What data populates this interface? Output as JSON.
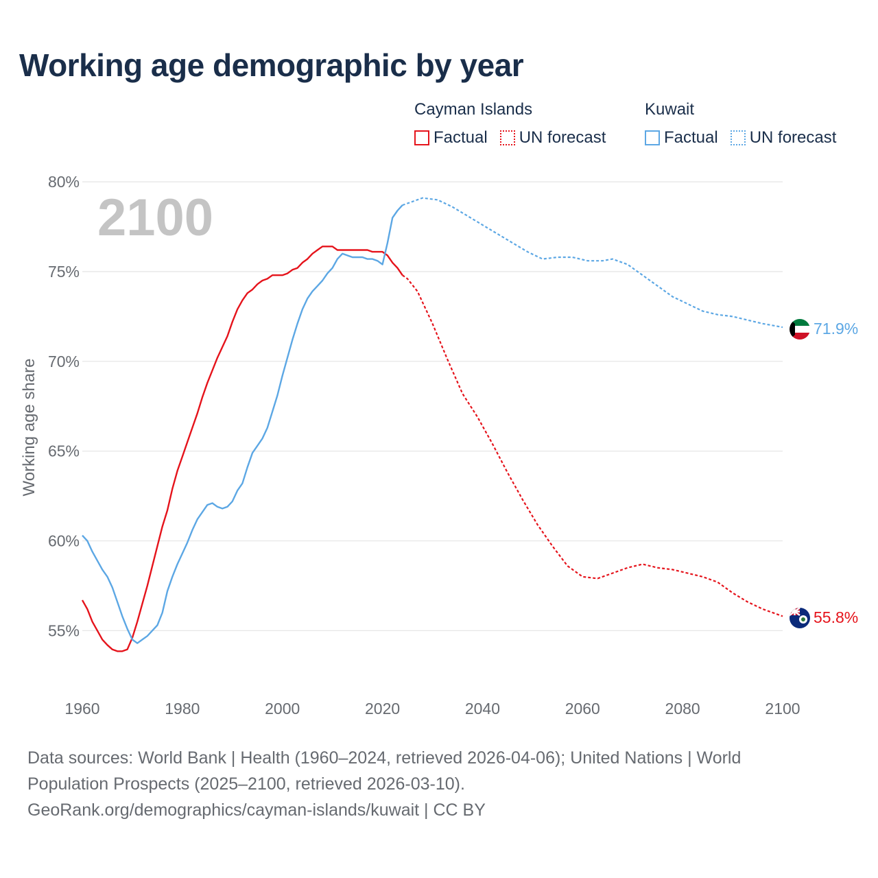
{
  "title": "Working age demographic by year",
  "legend": {
    "cayman": {
      "name": "Cayman Islands",
      "factual": "Factual",
      "forecast": "UN forecast"
    },
    "kuwait": {
      "name": "Kuwait",
      "factual": "Factual",
      "forecast": "UN forecast"
    }
  },
  "colors": {
    "cayman": "#e5131b",
    "kuwait": "#5ca7e4"
  },
  "footer": {
    "line1": "Data sources: World Bank | Health (1960–2024, retrieved 2026-04-06); United Nations | World",
    "line2": "Population Prospects (2025–2100, retrieved 2026-03-10).",
    "line3": "GeoRank.org/demographics/cayman-islands/kuwait | CC BY"
  },
  "chart_data": {
    "type": "line",
    "title": "Working age demographic by year",
    "ylabel": "Working age share",
    "xlabel": "",
    "year_label": "2100",
    "xlim": [
      1960,
      2100
    ],
    "ylim": [
      52.3,
      80.5
    ],
    "x_ticks": [
      1960,
      1980,
      2000,
      2020,
      2040,
      2060,
      2080,
      2100
    ],
    "x_tick_labels": [
      "1960",
      "1980",
      "2000",
      "2020",
      "2040",
      "2060",
      "2080",
      "2100"
    ],
    "y_ticks": [
      55,
      60,
      65,
      70,
      75,
      80
    ],
    "y_tick_labels": [
      "55%",
      "60%",
      "65%",
      "70%",
      "75%",
      "80%"
    ],
    "grid": true,
    "series": [
      {
        "name": "Cayman Islands",
        "color": "#e5131b",
        "end_label": "55.8%",
        "flag": "cayman-islands-flag",
        "factual": {
          "x": [
            1960,
            1961,
            1962,
            1963,
            1964,
            1965,
            1966,
            1967,
            1968,
            1969,
            1970,
            1971,
            1972,
            1973,
            1974,
            1975,
            1976,
            1977,
            1978,
            1979,
            1980,
            1981,
            1982,
            1983,
            1984,
            1985,
            1986,
            1987,
            1988,
            1989,
            1990,
            1991,
            1992,
            1993,
            1994,
            1995,
            1996,
            1997,
            1998,
            1999,
            2000,
            2001,
            2002,
            2003,
            2004,
            2005,
            2006,
            2007,
            2008,
            2009,
            2010,
            2011,
            2012,
            2013,
            2014,
            2015,
            2016,
            2017,
            2018,
            2019,
            2020,
            2021,
            2022,
            2023,
            2024
          ],
          "y": [
            56.7,
            56.2,
            55.5,
            55.0,
            54.5,
            54.2,
            53.95,
            53.85,
            53.85,
            53.95,
            54.6,
            55.5,
            56.5,
            57.5,
            58.6,
            59.7,
            60.8,
            61.7,
            62.9,
            63.9,
            64.7,
            65.5,
            66.3,
            67.1,
            68.0,
            68.8,
            69.5,
            70.2,
            70.8,
            71.4,
            72.2,
            72.9,
            73.4,
            73.8,
            74.0,
            74.3,
            74.5,
            74.6,
            74.8,
            74.8,
            74.8,
            74.9,
            75.1,
            75.2,
            75.5,
            75.7,
            76.0,
            76.2,
            76.4,
            76.4,
            76.4,
            76.2,
            76.2,
            76.2,
            76.2,
            76.2,
            76.2,
            76.2,
            76.1,
            76.1,
            76.1,
            75.9,
            75.5,
            75.2,
            74.8
          ]
        },
        "forecast": {
          "x": [
            2024,
            2025,
            2027,
            2030,
            2033,
            2036,
            2039,
            2042,
            2045,
            2048,
            2051,
            2054,
            2057,
            2060,
            2063,
            2066,
            2069,
            2072,
            2075,
            2078,
            2081,
            2084,
            2087,
            2090,
            2093,
            2096,
            2100
          ],
          "y": [
            74.8,
            74.6,
            73.9,
            72.1,
            70.1,
            68.2,
            66.9,
            65.4,
            63.8,
            62.3,
            60.9,
            59.7,
            58.6,
            58.0,
            57.9,
            58.2,
            58.5,
            58.7,
            58.5,
            58.4,
            58.2,
            58.0,
            57.7,
            57.1,
            56.6,
            56.2,
            55.8
          ]
        }
      },
      {
        "name": "Kuwait",
        "color": "#5ca7e4",
        "end_label": "71.9%",
        "flag": "kuwait-flag",
        "factual": {
          "x": [
            1960,
            1961,
            1962,
            1963,
            1964,
            1965,
            1966,
            1967,
            1968,
            1969,
            1970,
            1971,
            1972,
            1973,
            1974,
            1975,
            1976,
            1977,
            1978,
            1979,
            1980,
            1981,
            1982,
            1983,
            1984,
            1985,
            1986,
            1987,
            1988,
            1989,
            1990,
            1991,
            1992,
            1993,
            1994,
            1995,
            1996,
            1997,
            1998,
            1999,
            2000,
            2001,
            2002,
            2003,
            2004,
            2005,
            2006,
            2007,
            2008,
            2009,
            2010,
            2011,
            2012,
            2013,
            2014,
            2015,
            2016,
            2017,
            2018,
            2019,
            2020,
            2021,
            2022,
            2023,
            2024
          ],
          "y": [
            60.3,
            60.0,
            59.4,
            58.9,
            58.4,
            58.0,
            57.4,
            56.6,
            55.8,
            55.1,
            54.5,
            54.3,
            54.5,
            54.7,
            55.0,
            55.3,
            56.0,
            57.2,
            58.0,
            58.7,
            59.3,
            59.9,
            60.6,
            61.2,
            61.6,
            62.0,
            62.1,
            61.9,
            61.8,
            61.9,
            62.2,
            62.8,
            63.2,
            64.1,
            64.9,
            65.3,
            65.7,
            66.3,
            67.2,
            68.1,
            69.2,
            70.2,
            71.2,
            72.1,
            72.9,
            73.5,
            73.9,
            74.2,
            74.5,
            74.9,
            75.2,
            75.7,
            76.0,
            75.9,
            75.8,
            75.8,
            75.8,
            75.7,
            75.7,
            75.6,
            75.4,
            76.6,
            78.0,
            78.4,
            78.7
          ]
        },
        "forecast": {
          "x": [
            2024,
            2026,
            2028,
            2031,
            2034,
            2037,
            2040,
            2043,
            2046,
            2049,
            2052,
            2055,
            2058,
            2061,
            2064,
            2066,
            2069,
            2072,
            2075,
            2078,
            2081,
            2084,
            2087,
            2090,
            2093,
            2096,
            2098,
            2100
          ],
          "y": [
            78.7,
            78.9,
            79.1,
            79.0,
            78.6,
            78.1,
            77.6,
            77.1,
            76.6,
            76.1,
            75.7,
            75.8,
            75.8,
            75.6,
            75.6,
            75.7,
            75.4,
            74.8,
            74.2,
            73.6,
            73.2,
            72.8,
            72.6,
            72.5,
            72.3,
            72.1,
            72.0,
            71.9
          ]
        }
      }
    ]
  }
}
